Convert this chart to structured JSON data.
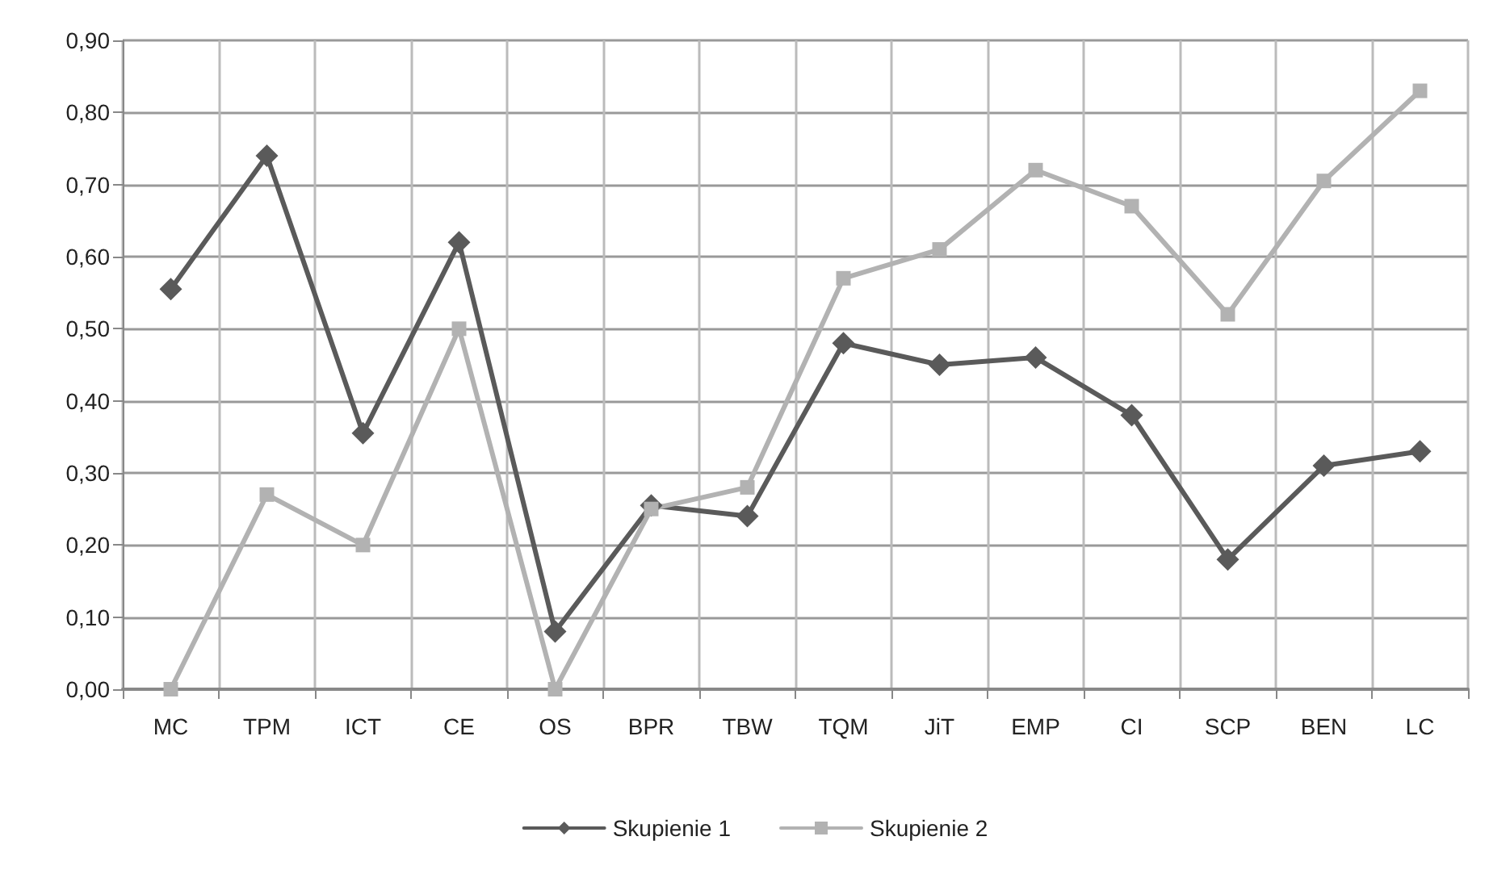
{
  "chart_data": {
    "type": "line",
    "categories": [
      "MC",
      "TPM",
      "ICT",
      "CE",
      "OS",
      "BPR",
      "TBW",
      "TQM",
      "JiT",
      "EMP",
      "CI",
      "SCP",
      "BEN",
      "LC"
    ],
    "series": [
      {
        "name": "Skupienie 1",
        "color": "#5a5a5a",
        "marker": "diamond",
        "values": [
          0.555,
          0.74,
          0.355,
          0.62,
          0.08,
          0.255,
          0.24,
          0.48,
          0.45,
          0.46,
          0.38,
          0.18,
          0.31,
          0.33
        ]
      },
      {
        "name": "Skupienie 2",
        "color": "#b2b2b2",
        "marker": "square",
        "values": [
          0,
          0.27,
          0.2,
          0.5,
          0,
          0.25,
          0.28,
          0.57,
          0.61,
          0.72,
          0.67,
          0.52,
          0.705,
          0.83
        ]
      }
    ],
    "ylim": [
      0,
      0.9
    ],
    "yticks": [
      {
        "value": 0,
        "label": "0,00"
      },
      {
        "value": 0.1,
        "label": "0,10"
      },
      {
        "value": 0.2,
        "label": "0,20"
      },
      {
        "value": 0.3,
        "label": "0,30"
      },
      {
        "value": 0.4,
        "label": "0,40"
      },
      {
        "value": 0.5,
        "label": "0,50"
      },
      {
        "value": 0.6,
        "label": "0,60"
      },
      {
        "value": 0.7,
        "label": "0,70"
      },
      {
        "value": 0.8,
        "label": "0,80"
      },
      {
        "value": 0.9,
        "label": "0,90"
      }
    ],
    "grid": true,
    "legend": "bottom",
    "line_style": "solid"
  }
}
